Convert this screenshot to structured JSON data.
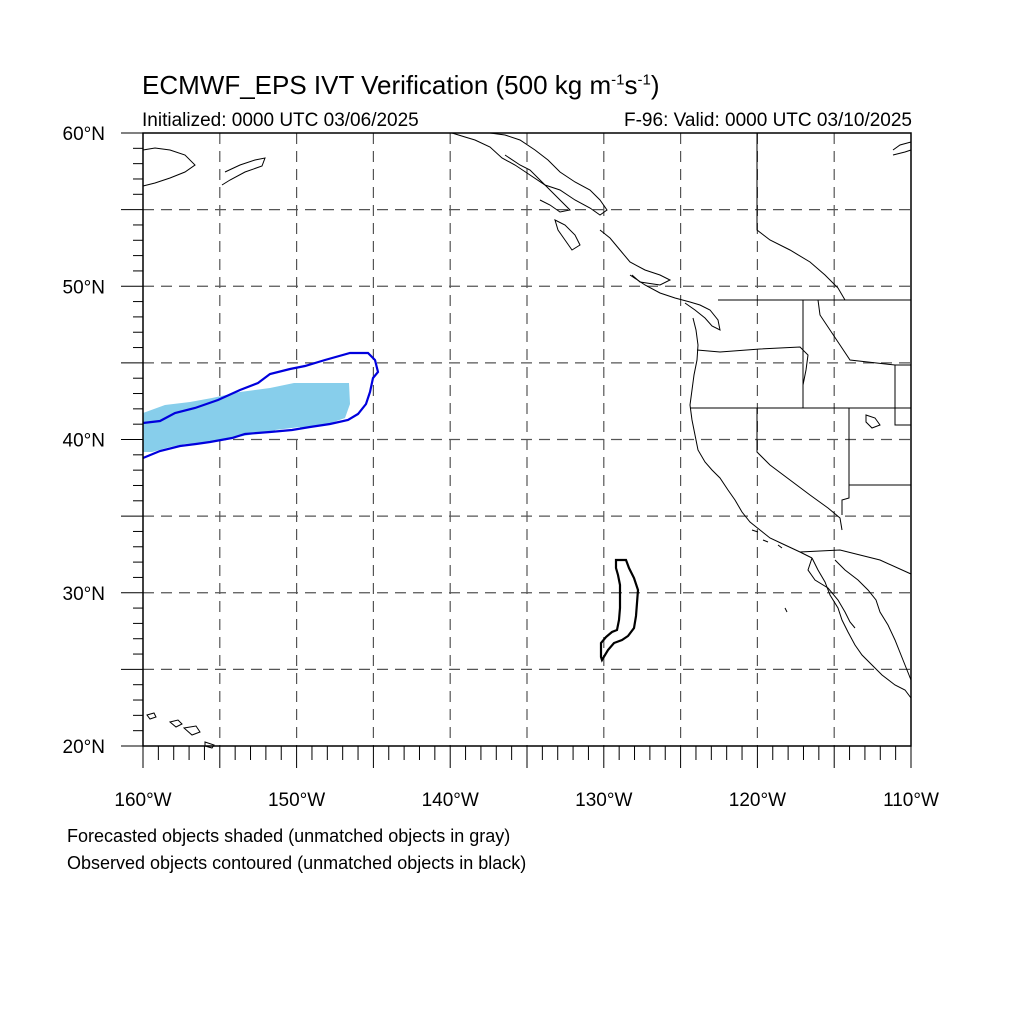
{
  "title": {
    "main": "ECMWF_EPS IVT Verification (500 kg m",
    "exp1": "-1",
    "mid": "s",
    "exp2": "-1",
    "close": ")"
  },
  "subtitle_left": "Initialized: 0000 UTC 03/06/2025",
  "subtitle_right": "F-96: Valid: 0000 UTC 03/10/2025",
  "footnotes": [
    "Forecasted objects shaded (unmatched objects in gray)",
    "Observed objects contoured (unmatched objects in black)"
  ],
  "map": {
    "lon_range": [
      -160,
      -110
    ],
    "lat_range": [
      20,
      60
    ],
    "grid": "dashed, every 5 degrees",
    "lon_labels": [
      {
        "lon": -160,
        "text": "160°W"
      },
      {
        "lon": -150,
        "text": "150°W"
      },
      {
        "lon": -140,
        "text": "140°W"
      },
      {
        "lon": -130,
        "text": "130°W"
      },
      {
        "lon": -120,
        "text": "120°W"
      },
      {
        "lon": -110,
        "text": "110°W"
      }
    ],
    "lat_labels": [
      {
        "lat": 60,
        "text": "60°N"
      },
      {
        "lat": 50,
        "text": "50°N"
      },
      {
        "lat": 40,
        "text": "40°N"
      },
      {
        "lat": 30,
        "text": "30°N"
      },
      {
        "lat": 20,
        "text": "20°N"
      }
    ],
    "colors": {
      "forecast_matched_fill": "#87ceeb",
      "observed_matched_contour": "#0000dd",
      "observed_unmatched_contour": "#000000",
      "coastline": "#000000",
      "grid": "#555555"
    }
  }
}
